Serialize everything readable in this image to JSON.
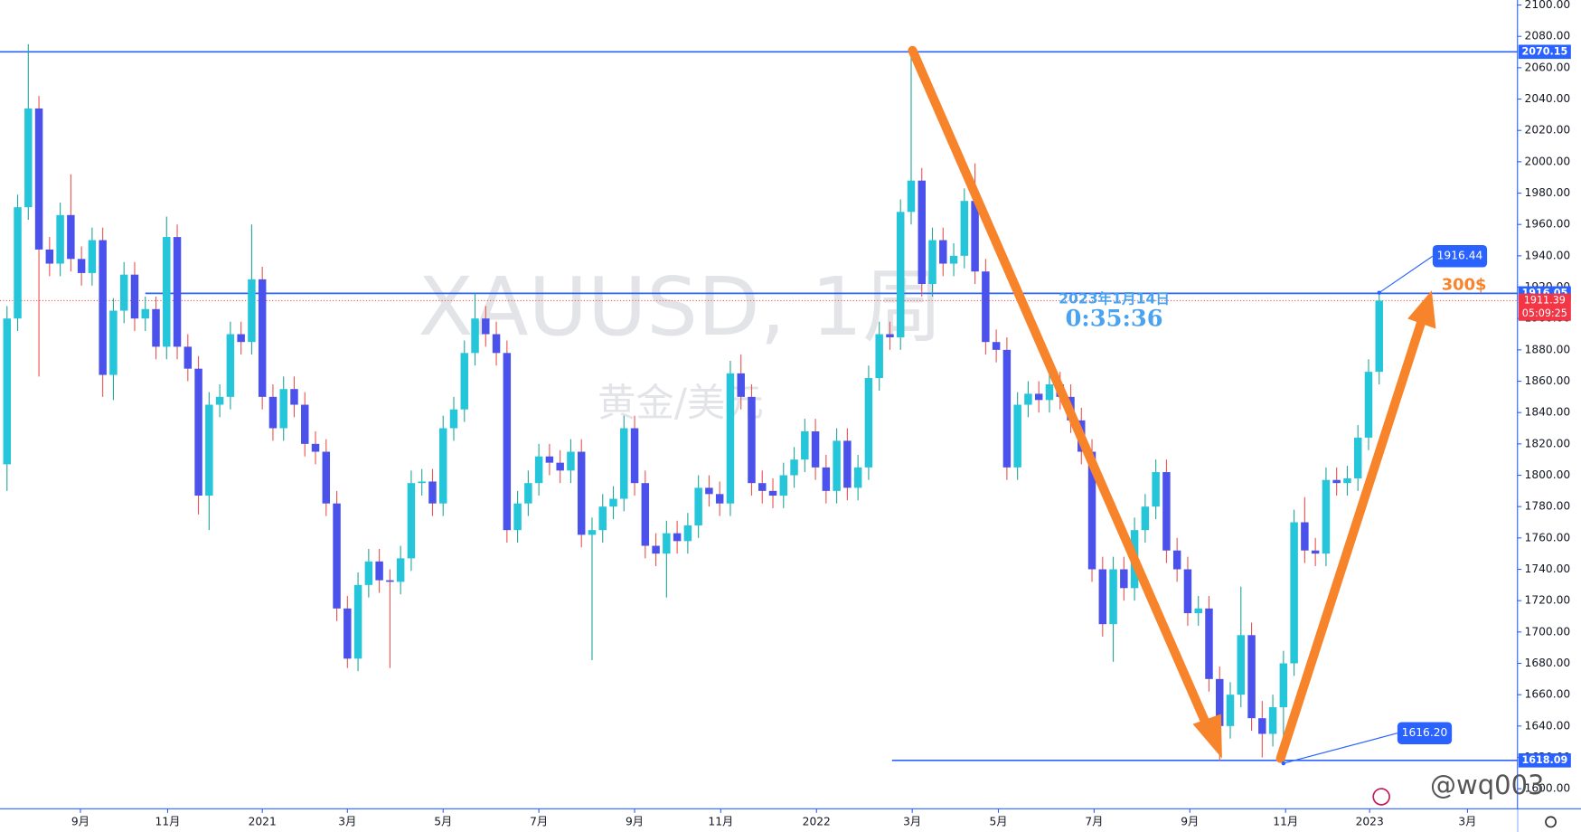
{
  "chart_data": {
    "type": "candlestick",
    "symbol": "XAUUSD, 1周",
    "description": "黄金/美元",
    "date": "2023年1月14日",
    "time": "0:35:36",
    "note": "300$",
    "user": "@wq003",
    "up_color": "#26c6da",
    "down_color": "#4b52ec",
    "up_wick": "#26a69a",
    "down_wick": "#ef5350",
    "line_color": "#2962ff",
    "open": [
      1807,
      1900,
      1971,
      2034,
      1944,
      1935,
      1966,
      1938,
      1929,
      1950,
      1864,
      1905,
      1928,
      1900,
      1906,
      1882,
      1952,
      1882,
      1868,
      1787,
      1845,
      1850,
      1890,
      1885,
      1925,
      1850,
      1830,
      1855,
      1845,
      1820,
      1815,
      1782,
      1715,
      1683,
      1730,
      1745,
      1733,
      1732,
      1747,
      1795,
      1796,
      1782,
      1830,
      1842,
      1878,
      1900,
      1890,
      1878,
      1765,
      1782,
      1795,
      1812,
      1808,
      1803,
      1815,
      1762,
      1765,
      1780,
      1785,
      1830,
      1795,
      1755,
      1750,
      1763,
      1758,
      1768,
      1792,
      1788,
      1782,
      1865,
      1850,
      1795,
      1790,
      1787,
      1800,
      1810,
      1828,
      1805,
      1790,
      1822,
      1792,
      1805,
      1862,
      1890,
      1888,
      1968,
      1988,
      1922,
      1950,
      1935,
      1940,
      1975,
      1930,
      1885,
      1880,
      1805,
      1845,
      1852,
      1848,
      1858,
      1850,
      1835,
      1815,
      1740,
      1705,
      1740,
      1728,
      1765,
      1780,
      1802,
      1752,
      1740,
      1712,
      1715,
      1670,
      1640,
      1660,
      1698,
      1645,
      1635,
      1652,
      1680,
      1770,
      1752,
      1750,
      1797,
      1795,
      1798,
      1824,
      1866
    ],
    "high": [
      1908,
      1979,
      2075,
      2042,
      1952,
      1974,
      1992,
      1946,
      1958,
      1958,
      1913,
      1936,
      1936,
      1914,
      1914,
      1965,
      1960,
      1890,
      1876,
      1853,
      1858,
      1898,
      1898,
      1960,
      1933,
      1858,
      1863,
      1863,
      1853,
      1828,
      1823,
      1790,
      1723,
      1738,
      1753,
      1753,
      1740,
      1755,
      1803,
      1804,
      1804,
      1838,
      1850,
      1886,
      1916,
      1908,
      1898,
      1886,
      1790,
      1803,
      1820,
      1820,
      1816,
      1823,
      1823,
      1773,
      1788,
      1793,
      1838,
      1838,
      1803,
      1763,
      1771,
      1771,
      1776,
      1800,
      1800,
      1796,
      1873,
      1877,
      1858,
      1803,
      1798,
      1808,
      1818,
      1836,
      1836,
      1813,
      1830,
      1830,
      1813,
      1870,
      1898,
      1898,
      1976,
      2070.15,
      1996,
      1958,
      1958,
      1948,
      1983,
      1999,
      1938,
      1893,
      1888,
      1853,
      1860,
      1860,
      1866,
      1866,
      1858,
      1843,
      1823,
      1748,
      1748,
      1748,
      1773,
      1788,
      1810,
      1810,
      1760,
      1748,
      1723,
      1723,
      1678,
      1668,
      1729,
      1706,
      1656,
      1660,
      1688,
      1778,
      1786,
      1760,
      1805,
      1805,
      1806,
      1832,
      1874,
      1916.44
    ],
    "low": [
      1790,
      1892,
      1963,
      1863,
      1927,
      1927,
      1930,
      1921,
      1921,
      1850,
      1848,
      1897,
      1892,
      1892,
      1874,
      1874,
      1874,
      1860,
      1775,
      1765,
      1837,
      1842,
      1877,
      1877,
      1842,
      1822,
      1822,
      1837,
      1812,
      1807,
      1774,
      1707,
      1677,
      1675,
      1722,
      1725,
      1677,
      1724,
      1739,
      1787,
      1774,
      1774,
      1822,
      1834,
      1870,
      1882,
      1870,
      1757,
      1757,
      1774,
      1787,
      1800,
      1795,
      1795,
      1754,
      1682,
      1757,
      1772,
      1777,
      1787,
      1747,
      1742,
      1722,
      1750,
      1750,
      1760,
      1780,
      1774,
      1774,
      1842,
      1787,
      1782,
      1779,
      1779,
      1792,
      1802,
      1797,
      1782,
      1782,
      1784,
      1784,
      1797,
      1854,
      1880,
      1880,
      1960,
      1914,
      1914,
      1927,
      1927,
      1932,
      1922,
      1877,
      1872,
      1797,
      1797,
      1837,
      1840,
      1840,
      1842,
      1827,
      1807,
      1732,
      1697,
      1681,
      1720,
      1720,
      1757,
      1772,
      1744,
      1732,
      1704,
      1704,
      1662,
      1618,
      1632,
      1652,
      1637,
      1620,
      1627,
      1616.2,
      1672,
      1744,
      1742,
      1742,
      1787,
      1787,
      1790,
      1816,
      1858
    ],
    "close": [
      1900,
      1971,
      2034,
      1944,
      1935,
      1966,
      1938,
      1929,
      1950,
      1864,
      1905,
      1928,
      1900,
      1906,
      1882,
      1952,
      1882,
      1868,
      1787,
      1845,
      1850,
      1890,
      1885,
      1925,
      1850,
      1830,
      1855,
      1845,
      1820,
      1815,
      1782,
      1715,
      1683,
      1730,
      1745,
      1733,
      1732,
      1747,
      1795,
      1796,
      1782,
      1830,
      1842,
      1878,
      1900,
      1890,
      1878,
      1765,
      1782,
      1795,
      1812,
      1808,
      1803,
      1815,
      1762,
      1765,
      1780,
      1785,
      1830,
      1795,
      1755,
      1750,
      1763,
      1758,
      1768,
      1792,
      1788,
      1782,
      1865,
      1850,
      1795,
      1790,
      1787,
      1800,
      1810,
      1828,
      1805,
      1790,
      1822,
      1792,
      1805,
      1862,
      1890,
      1888,
      1968,
      1988,
      1922,
      1950,
      1935,
      1940,
      1975,
      1930,
      1885,
      1880,
      1805,
      1845,
      1852,
      1848,
      1858,
      1850,
      1835,
      1815,
      1740,
      1705,
      1740,
      1728,
      1765,
      1780,
      1802,
      1752,
      1740,
      1712,
      1715,
      1670,
      1640,
      1660,
      1698,
      1645,
      1635,
      1652,
      1680,
      1770,
      1752,
      1750,
      1797,
      1795,
      1798,
      1824,
      1866,
      1911.39
    ],
    "xlim": [
      -0.66,
      142
    ],
    "xticks": [
      {
        "value": 6.9,
        "label": "9月"
      },
      {
        "value": 15.1,
        "label": "11月"
      },
      {
        "value": 24,
        "label": "2021"
      },
      {
        "value": 32,
        "label": "3月"
      },
      {
        "value": 41,
        "label": "5月"
      },
      {
        "value": 50,
        "label": "7月"
      },
      {
        "value": 59,
        "label": "9月"
      },
      {
        "value": 67.1,
        "label": "11月"
      },
      {
        "value": 76.1,
        "label": "2022"
      },
      {
        "value": 85.1,
        "label": "3月"
      },
      {
        "value": 93.2,
        "label": "5月"
      },
      {
        "value": 102.2,
        "label": "7月"
      },
      {
        "value": 111.2,
        "label": "9月"
      },
      {
        "value": 120.2,
        "label": "11月"
      },
      {
        "value": 128.1,
        "label": "2023"
      },
      {
        "value": 137.3,
        "label": "3月"
      }
    ],
    "ylim": [
      1587.2,
      2103.2
    ],
    "yticks": [
      {
        "value": 1600,
        "label": "1600.00"
      },
      {
        "value": 1620,
        "label": "1620.00"
      },
      {
        "value": 1640,
        "label": "1640.00"
      },
      {
        "value": 1660,
        "label": "1660.00"
      },
      {
        "value": 1680,
        "label": "1680.00"
      },
      {
        "value": 1700,
        "label": "1700.00"
      },
      {
        "value": 1720,
        "label": "1720.00"
      },
      {
        "value": 1740,
        "label": "1740.00"
      },
      {
        "value": 1760,
        "label": "1760.00"
      },
      {
        "value": 1780,
        "label": "1780.00"
      },
      {
        "value": 1800,
        "label": "1800.00"
      },
      {
        "value": 1820,
        "label": "1820.00"
      },
      {
        "value": 1840,
        "label": "1840.00"
      },
      {
        "value": 1860,
        "label": "1860.00"
      },
      {
        "value": 1880,
        "label": "1880.00"
      },
      {
        "value": 1900,
        "label": "1900.00"
      },
      {
        "value": 1920,
        "label": "1920.00"
      },
      {
        "value": 1940,
        "label": "1940.00"
      },
      {
        "value": 1960,
        "label": "1960.00"
      },
      {
        "value": 1980,
        "label": "1980.00"
      },
      {
        "value": 2000,
        "label": "2000.00"
      },
      {
        "value": 2020,
        "label": "2020.00"
      },
      {
        "value": 2040,
        "label": "2040.00"
      },
      {
        "value": 2060,
        "label": "2060.00"
      },
      {
        "value": 2080,
        "label": "2080.00"
      },
      {
        "value": 2100,
        "label": "2100.00"
      }
    ],
    "price_lines": [
      {
        "value": 1916.05,
        "start": 13
      },
      {
        "value": 2070.15,
        "start": -0.66
      },
      {
        "value": 1618.09,
        "start": 83.2
      }
    ],
    "last_price": {
      "value": 1911.39,
      "countdown": "05:09:25"
    },
    "callouts": [
      {
        "value": 1916.44,
        "label": "1916.44",
        "index": 129
      },
      {
        "value": 1616.2,
        "label": "1616.20",
        "index": 120
      }
    ]
  }
}
